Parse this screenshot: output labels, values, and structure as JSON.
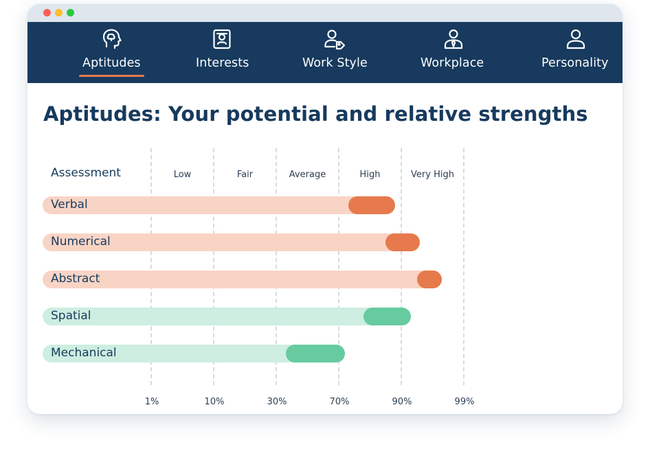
{
  "colors": {
    "nav_bg": "#173a5e",
    "accent_orange": "#e77a4c",
    "track_orange": "#f8d4c5",
    "accent_green": "#67cba0",
    "track_green": "#cdeee0",
    "dot_red": "#ff5f57",
    "dot_yellow": "#ffbd2e",
    "dot_green": "#28c940"
  },
  "nav": {
    "tabs": [
      {
        "label": "Aptitudes",
        "icon": "head-brain-icon",
        "active": true
      },
      {
        "label": "Interests",
        "icon": "id-card-icon",
        "active": false
      },
      {
        "label": "Work Style",
        "icon": "user-tag-icon",
        "active": false
      },
      {
        "label": "Workplace",
        "icon": "user-tie-icon",
        "active": false
      },
      {
        "label": "Personality",
        "icon": "user-icon",
        "active": false
      }
    ]
  },
  "page": {
    "title": "Aptitudes: Your potential and relative strengths"
  },
  "chart_data": {
    "type": "bar",
    "header": "Assessment",
    "bands": [
      "Low",
      "Fair",
      "Average",
      "High",
      "Very High"
    ],
    "ticks": [
      "1%",
      "10%",
      "30%",
      "70%",
      "90%",
      "99%"
    ],
    "rows": [
      {
        "name": "Verbal",
        "range": [
          63,
          78
        ],
        "color": "orange"
      },
      {
        "name": "Numerical",
        "range": [
          75,
          86
        ],
        "color": "orange"
      },
      {
        "name": "Abstract",
        "range": [
          85,
          93
        ],
        "color": "orange"
      },
      {
        "name": "Spatial",
        "range": [
          68,
          83
        ],
        "color": "green"
      },
      {
        "name": "Mechanical",
        "range": [
          43,
          62
        ],
        "color": "green"
      }
    ]
  }
}
